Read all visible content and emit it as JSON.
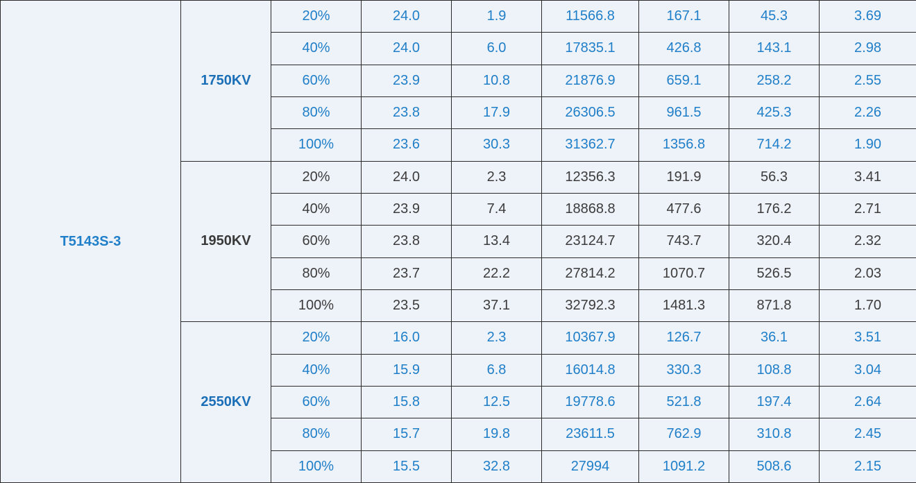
{
  "model": "T5143S-3",
  "groups": [
    {
      "voltage": "1750KV",
      "style": "blue",
      "rows": [
        [
          "20%",
          "24.0",
          "1.9",
          "11566.8",
          "167.1",
          "45.3",
          "3.69"
        ],
        [
          "40%",
          "24.0",
          "6.0",
          "17835.1",
          "426.8",
          "143.1",
          "2.98"
        ],
        [
          "60%",
          "23.9",
          "10.8",
          "21876.9",
          "659.1",
          "258.2",
          "2.55"
        ],
        [
          "80%",
          "23.8",
          "17.9",
          "26306.5",
          "961.5",
          "425.3",
          "2.26"
        ],
        [
          "100%",
          "23.6",
          "30.3",
          "31362.7",
          "1356.8",
          "714.2",
          "1.90"
        ]
      ]
    },
    {
      "voltage": "1950KV",
      "style": "dark",
      "rows": [
        [
          "20%",
          "24.0",
          "2.3",
          "12356.3",
          "191.9",
          "56.3",
          "3.41"
        ],
        [
          "40%",
          "23.9",
          "7.4",
          "18868.8",
          "477.6",
          "176.2",
          "2.71"
        ],
        [
          "60%",
          "23.8",
          "13.4",
          "23124.7",
          "743.7",
          "320.4",
          "2.32"
        ],
        [
          "80%",
          "23.7",
          "22.2",
          "27814.2",
          "1070.7",
          "526.5",
          "2.03"
        ],
        [
          "100%",
          "23.5",
          "37.1",
          "32792.3",
          "1481.3",
          "871.8",
          "1.70"
        ]
      ]
    },
    {
      "voltage": "2550KV",
      "style": "blue",
      "rows": [
        [
          "20%",
          "16.0",
          "2.3",
          "10367.9",
          "126.7",
          "36.1",
          "3.51"
        ],
        [
          "40%",
          "15.9",
          "6.8",
          "16014.8",
          "330.3",
          "108.8",
          "3.04"
        ],
        [
          "60%",
          "15.8",
          "12.5",
          "19778.6",
          "521.8",
          "197.4",
          "2.64"
        ],
        [
          "80%",
          "15.7",
          "19.8",
          "23611.5",
          "762.9",
          "310.8",
          "2.45"
        ],
        [
          "100%",
          "15.5",
          "32.8",
          "27994",
          "1091.2",
          "508.6",
          "2.15"
        ]
      ]
    }
  ],
  "colors": {
    "background": "#eef2f9",
    "blue_text": "#1f7fc8",
    "dark_text": "#3c3c3c",
    "border": "#2a2a2a"
  }
}
